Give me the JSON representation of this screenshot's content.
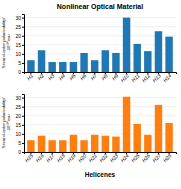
{
  "chart_data": [
    {
      "type": "bar",
      "title": "Nonlinear Optical Material",
      "ylabel": "Second-order polarizability/-10⁻³⁰ esu",
      "categories": [
        "H1",
        "H2",
        "H3",
        "H4",
        "H5",
        "H6",
        "H7",
        "H8",
        "H9",
        "H10",
        "H11",
        "H12",
        "H13",
        "H14"
      ],
      "values": [
        6.5,
        12.0,
        5.5,
        5.5,
        5.5,
        10.5,
        6.5,
        12.0,
        10.5,
        30.0,
        15.5,
        11.5,
        22.5,
        19.5
      ],
      "ylim": [
        0,
        32
      ],
      "yticks": [
        0,
        5,
        10,
        15,
        20,
        25,
        30
      ],
      "grid": true
    },
    {
      "type": "bar",
      "xlabel": "Helicenes",
      "ylabel": "Second-order polarizability/-10⁻³⁰ esu",
      "categories": [
        "H15",
        "H16",
        "H17",
        "H18",
        "H19",
        "H20",
        "H21",
        "H22",
        "H23",
        "H24",
        "H25",
        "H26",
        "H27",
        "H28"
      ],
      "values": [
        6.5,
        9.0,
        6.5,
        6.5,
        9.5,
        6.5,
        9.5,
        9.0,
        8.5,
        30.5,
        15.5,
        9.5,
        26.0,
        16.0
      ],
      "ylim": [
        0,
        32
      ],
      "yticks": [
        0,
        5,
        10,
        15,
        20,
        25,
        30
      ],
      "grid": true
    }
  ]
}
